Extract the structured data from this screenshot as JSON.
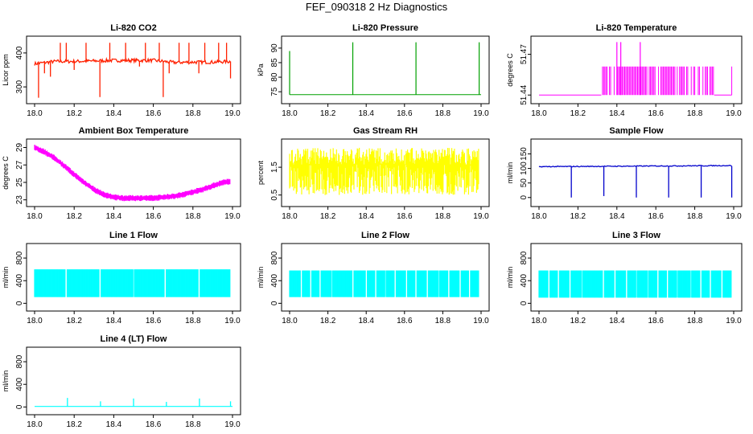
{
  "figure": {
    "title": "FEF_090318  2 Hz Diagnostics"
  },
  "chart_data": [
    {
      "id": "co2",
      "type": "line",
      "title": "Li-820 CO2",
      "ylabel": "Licor ppm",
      "color": "#ff2000",
      "xlim": [
        18.0,
        19.0
      ],
      "ylim": [
        260,
        440
      ],
      "xticks": [
        "18.0",
        "18.2",
        "18.4",
        "18.6",
        "18.8",
        "19.0"
      ],
      "yticks": [
        "300",
        "400"
      ],
      "baseline": [
        [
          18.0,
          368
        ],
        [
          18.1,
          375
        ],
        [
          18.2,
          375
        ],
        [
          18.4,
          378
        ],
        [
          18.6,
          378
        ],
        [
          18.7,
          372
        ],
        [
          18.8,
          373
        ],
        [
          18.9,
          373
        ],
        [
          18.99,
          375
        ]
      ],
      "spikes": [
        [
          18.02,
          268
        ],
        [
          18.05,
          340
        ],
        [
          18.08,
          330
        ],
        [
          18.13,
          430
        ],
        [
          18.16,
          430
        ],
        [
          18.2,
          350
        ],
        [
          18.26,
          430
        ],
        [
          18.33,
          270
        ],
        [
          18.38,
          430
        ],
        [
          18.46,
          430
        ],
        [
          18.53,
          360
        ],
        [
          18.56,
          430
        ],
        [
          18.63,
          430
        ],
        [
          18.65,
          270
        ],
        [
          18.68,
          340
        ],
        [
          18.73,
          430
        ],
        [
          18.78,
          430
        ],
        [
          18.83,
          340
        ],
        [
          18.86,
          430
        ],
        [
          18.93,
          430
        ],
        [
          18.97,
          430
        ]
      ],
      "end": [
        18.99,
        325
      ]
    },
    {
      "id": "pressure",
      "type": "line",
      "title": "Li-820 Pressure",
      "ylabel": "kPa",
      "color": "#00a000",
      "xlim": [
        18.0,
        19.0
      ],
      "ylim": [
        72,
        93
      ],
      "xticks": [
        "18.0",
        "18.2",
        "18.4",
        "18.6",
        "18.8",
        "19.0"
      ],
      "yticks": [
        "75",
        "80",
        "85",
        "90"
      ],
      "baseline": [
        [
          18.0,
          74.0
        ],
        [
          19.0,
          74.0
        ]
      ],
      "spikes": [
        [
          18.0,
          89
        ],
        [
          18.33,
          92
        ],
        [
          18.66,
          92
        ],
        [
          18.99,
          92
        ]
      ]
    },
    {
      "id": "licor-temp",
      "type": "line",
      "title": "Li-820 Temperature",
      "ylabel": "degrees C",
      "color": "#ff00ff",
      "xlim": [
        18.0,
        19.0
      ],
      "ylim": [
        51.436,
        51.481
      ],
      "xticks": [
        "18.0",
        "18.2",
        "18.4",
        "18.6",
        "18.8",
        "19.0"
      ],
      "yticks": [
        "51.44",
        "51.47"
      ],
      "low": 51.44,
      "high": 51.461,
      "peak": 51.479,
      "band": [
        18.32,
        18.9
      ],
      "peaks": [
        18.4,
        18.42,
        18.52
      ],
      "end": 18.99
    },
    {
      "id": "ambient-temp",
      "type": "line",
      "title": "Ambient Box Temperature",
      "ylabel": "degrees C",
      "color": "#ff00ff",
      "xlim": [
        18.0,
        19.0
      ],
      "ylim": [
        22.6,
        29.6
      ],
      "xticks": [
        "18.0",
        "18.2",
        "18.4",
        "18.6",
        "18.8",
        "19.0"
      ],
      "yticks": [
        "23",
        "25",
        "27",
        "29"
      ],
      "values": [
        [
          18.0,
          29.0
        ],
        [
          18.05,
          28.5
        ],
        [
          18.1,
          27.8
        ],
        [
          18.15,
          26.9
        ],
        [
          18.2,
          25.9
        ],
        [
          18.25,
          25.0
        ],
        [
          18.3,
          24.2
        ],
        [
          18.35,
          23.6
        ],
        [
          18.4,
          23.3
        ],
        [
          18.45,
          23.2
        ],
        [
          18.5,
          23.2
        ],
        [
          18.55,
          23.2
        ],
        [
          18.6,
          23.2
        ],
        [
          18.65,
          23.3
        ],
        [
          18.7,
          23.4
        ],
        [
          18.75,
          23.6
        ],
        [
          18.8,
          23.9
        ],
        [
          18.85,
          24.2
        ],
        [
          18.9,
          24.6
        ],
        [
          18.95,
          25.0
        ],
        [
          18.99,
          25.1
        ]
      ],
      "noise": 0.35
    },
    {
      "id": "rh",
      "type": "line",
      "title": "Gas Stream RH",
      "ylabel": "percent",
      "color": "#ffff00",
      "xlim": [
        18.0,
        19.0
      ],
      "ylim": [
        0.2,
        2.4
      ],
      "xticks": [
        "18.0",
        "18.2",
        "18.4",
        "18.6",
        "18.8",
        "19.0"
      ],
      "yticks": [
        "0.5",
        "1.5"
      ],
      "range": [
        0.5,
        2.2
      ],
      "typical": [
        1.6,
        2.1
      ]
    },
    {
      "id": "sample-flow",
      "type": "line",
      "title": "Sample Flow",
      "ylabel": "ml/min",
      "color": "#0000cc",
      "xlim": [
        18.0,
        19.0
      ],
      "ylim": [
        -20,
        190
      ],
      "xticks": [
        "18.0",
        "18.2",
        "18.4",
        "18.6",
        "18.8",
        "19.0"
      ],
      "yticks": [
        "0",
        "50",
        "100",
        "150"
      ],
      "baseline": [
        [
          18.0,
          106
        ],
        [
          19.0,
          110
        ]
      ],
      "dips": [
        [
          18.166,
          0
        ],
        [
          18.333,
          5
        ],
        [
          18.5,
          0
        ],
        [
          18.666,
          0
        ],
        [
          18.833,
          0
        ],
        [
          18.99,
          0
        ]
      ]
    },
    {
      "id": "line1",
      "type": "line",
      "title": "Line 1 Flow",
      "ylabel": "ml/min",
      "color": "#00ffff",
      "xlim": [
        18.0,
        19.0
      ],
      "ylim": [
        -80,
        1000
      ],
      "xticks": [
        "18.0",
        "18.2",
        "18.4",
        "18.6",
        "18.8",
        "19.0"
      ],
      "yticks": [
        "0",
        "400",
        "800"
      ],
      "range": [
        110,
        600
      ],
      "gaps": [
        18.16,
        18.33,
        18.5,
        18.66,
        18.83
      ],
      "end": 18.99
    },
    {
      "id": "line2",
      "type": "line",
      "title": "Line 2 Flow",
      "ylabel": "ml/min",
      "color": "#00ffff",
      "xlim": [
        18.0,
        19.0
      ],
      "ylim": [
        -80,
        1000
      ],
      "xticks": [
        "18.0",
        "18.2",
        "18.4",
        "18.6",
        "18.8",
        "19.0"
      ],
      "yticks": [
        "0",
        "400",
        "800"
      ],
      "range": [
        110,
        580
      ],
      "gaps": [
        18.06,
        18.11,
        18.16,
        18.22,
        18.33,
        18.4,
        18.45,
        18.5,
        18.55,
        18.61,
        18.66,
        18.72,
        18.78,
        18.83,
        18.89,
        18.94
      ],
      "end": 18.99
    },
    {
      "id": "line3",
      "type": "line",
      "title": "Line 3 Flow",
      "ylabel": "ml/min",
      "color": "#00ffff",
      "xlim": [
        18.0,
        19.0
      ],
      "ylim": [
        -80,
        1000
      ],
      "xticks": [
        "18.0",
        "18.2",
        "18.4",
        "18.6",
        "18.8",
        "19.0"
      ],
      "yticks": [
        "0",
        "400",
        "800"
      ],
      "range": [
        100,
        580
      ],
      "gaps": [
        18.05,
        18.1,
        18.16,
        18.22,
        18.33,
        18.39,
        18.45,
        18.5,
        18.56,
        18.61,
        18.66,
        18.71,
        18.78,
        18.83,
        18.88,
        18.94
      ],
      "end": 18.99
    },
    {
      "id": "line4",
      "type": "line",
      "title": "Line 4 (LT) Flow",
      "ylabel": "ml/min",
      "color": "#00ffff",
      "xlim": [
        18.0,
        19.0
      ],
      "ylim": [
        -80,
        1000
      ],
      "xticks": [
        "18.0",
        "18.2",
        "18.4",
        "18.6",
        "18.8",
        "19.0"
      ],
      "yticks": [
        "0",
        "400",
        "800"
      ],
      "baseline": [
        [
          18.0,
          10
        ],
        [
          19.0,
          10
        ]
      ],
      "spikes": [
        [
          18.166,
          160
        ],
        [
          18.333,
          100
        ],
        [
          18.5,
          150
        ],
        [
          18.666,
          90
        ],
        [
          18.833,
          150
        ],
        [
          18.99,
          100
        ]
      ]
    }
  ]
}
